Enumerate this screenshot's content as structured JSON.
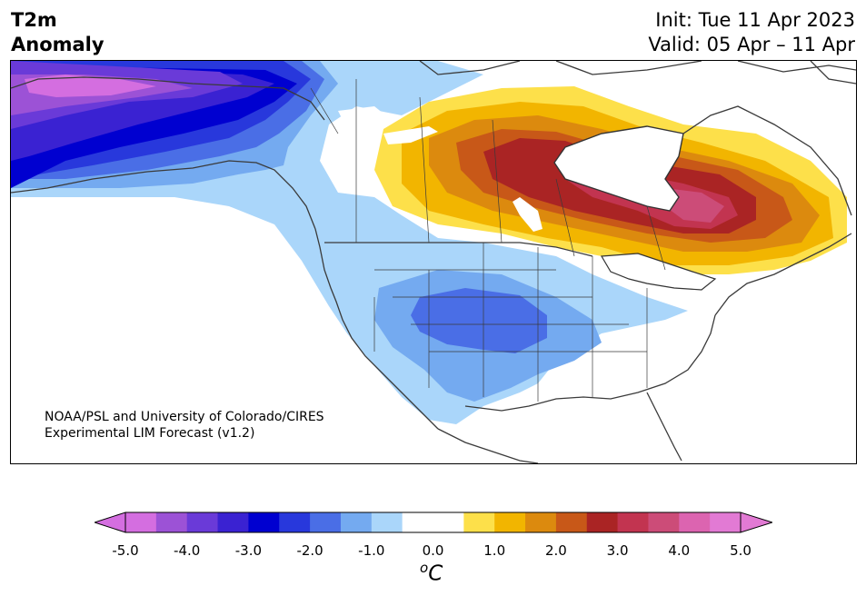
{
  "header": {
    "title_line1": "T2m",
    "title_line2": "Anomaly",
    "init_text": "Init: Tue 11 Apr 2023",
    "valid_text": "Valid: 05 Apr – 11 Apr"
  },
  "credit": {
    "line1": "NOAA/PSL and University of Colorado/CIRES",
    "line2": "Experimental LIM Forecast (v1.2)"
  },
  "colorbar": {
    "colors": [
      "#d46ee0",
      "#9c52d6",
      "#6a3ad8",
      "#3a22d2",
      "#0000d0",
      "#2838dc",
      "#4a6ee6",
      "#74aaf0",
      "#aad6fa",
      "#ffffff",
      "#ffffff",
      "#fde04a",
      "#f2b500",
      "#dc8a0e",
      "#c85818",
      "#aa2424",
      "#c23450",
      "#cc4c78",
      "#dc64b0",
      "#e27ad4"
    ],
    "under_color": "#d46ee0",
    "over_color": "#e27ad4",
    "tick_labels": [
      "-5.0",
      "-4.0",
      "-3.0",
      "-2.0",
      "-1.0",
      "0.0",
      "1.0",
      "2.0",
      "3.0",
      "4.0",
      "5.0"
    ],
    "unit_base": "C",
    "unit_sup": "o"
  }
}
